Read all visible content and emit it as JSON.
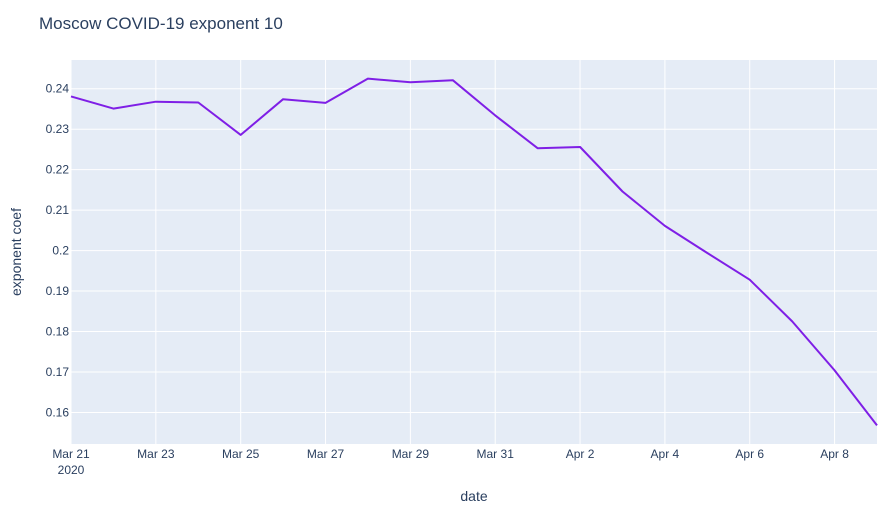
{
  "chart_data": {
    "type": "line",
    "title": "Moscow COVID-19 exponent 10",
    "xlabel": "date",
    "ylabel": "exponent coef",
    "x_tick_labels": [
      "Mar 21",
      "Mar 23",
      "Mar 25",
      "Mar 27",
      "Mar 29",
      "Mar 31",
      "Apr 2",
      "Apr 4",
      "Apr 6",
      "Apr 8"
    ],
    "x_tick_year": "2020",
    "y_tick_labels": [
      "0.16",
      "0.17",
      "0.18",
      "0.19",
      "0.2",
      "0.21",
      "0.22",
      "0.23",
      "0.24"
    ],
    "xlim": [
      "2020-03-21",
      "2020-04-09"
    ],
    "ylim": [
      0.1522,
      0.2471
    ],
    "grid": true,
    "series": [
      {
        "color": "#7f1fe6",
        "x": [
          "2020-03-21",
          "2020-03-22",
          "2020-03-23",
          "2020-03-24",
          "2020-03-25",
          "2020-03-26",
          "2020-03-27",
          "2020-03-28",
          "2020-03-29",
          "2020-03-30",
          "2020-03-31",
          "2020-04-01",
          "2020-04-02",
          "2020-04-03",
          "2020-04-04",
          "2020-04-05",
          "2020-04-06",
          "2020-04-07",
          "2020-04-08",
          "2020-04-09"
        ],
        "y": [
          0.2381,
          0.2351,
          0.2368,
          0.2366,
          0.2286,
          0.2374,
          0.2365,
          0.2425,
          0.2416,
          0.2421,
          0.2334,
          0.2253,
          0.2256,
          0.2146,
          0.2061,
          0.1994,
          0.1928,
          0.1825,
          0.1704,
          0.1568
        ]
      }
    ]
  },
  "colors": {
    "plot_background": "#e5ecf6",
    "grid": "#ffffff",
    "text": "#2a3f5f"
  }
}
